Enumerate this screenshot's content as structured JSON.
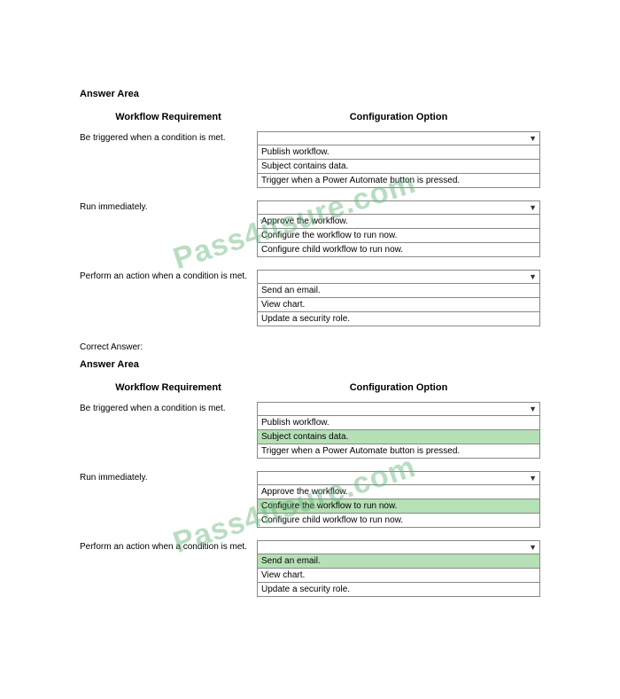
{
  "watermark_text": "Pass4itsure.com",
  "watermark_color": "rgba(100,180,120,0.45)",
  "highlight_color": "#b6e0b6",
  "border_color": "#888888",
  "section1": {
    "title": "Answer Area",
    "col1": "Workflow Requirement",
    "col2": "Configuration Option",
    "rows": [
      {
        "label": "Be triggered when a condition is met.",
        "options": [
          {
            "text": "Publish workflow.",
            "highlight": false
          },
          {
            "text": "Subject contains data.",
            "highlight": false
          },
          {
            "text": "Trigger when a Power Automate button is pressed.",
            "highlight": false
          }
        ]
      },
      {
        "label": "Run immediately.",
        "options": [
          {
            "text": "Approve the workflow.",
            "highlight": false
          },
          {
            "text": "Configure the workflow to run now.",
            "highlight": false
          },
          {
            "text": "Configure child workflow to run now.",
            "highlight": false
          }
        ]
      },
      {
        "label": "Perform an action when a condition is met.",
        "options": [
          {
            "text": "Send an email.",
            "highlight": false
          },
          {
            "text": "View chart.",
            "highlight": false
          },
          {
            "text": "Update a security role.",
            "highlight": false
          }
        ]
      }
    ]
  },
  "correct_label": "Correct Answer:",
  "section2": {
    "title": "Answer Area",
    "col1": "Workflow Requirement",
    "col2": "Configuration Option",
    "rows": [
      {
        "label": "Be triggered when a condition is met.",
        "options": [
          {
            "text": "Publish workflow.",
            "highlight": false
          },
          {
            "text": "Subject contains data.",
            "highlight": true
          },
          {
            "text": "Trigger when a Power Automate button is pressed.",
            "highlight": false
          }
        ]
      },
      {
        "label": "Run immediately.",
        "options": [
          {
            "text": "Approve the workflow.",
            "highlight": false
          },
          {
            "text": "Configure the workflow to run now.",
            "highlight": true
          },
          {
            "text": "Configure child workflow to run now.",
            "highlight": false
          }
        ]
      },
      {
        "label": "Perform an action when a condition is met.",
        "options": [
          {
            "text": "Send an email.",
            "highlight": true
          },
          {
            "text": "View chart.",
            "highlight": false
          },
          {
            "text": "Update a security role.",
            "highlight": false
          }
        ]
      }
    ]
  }
}
